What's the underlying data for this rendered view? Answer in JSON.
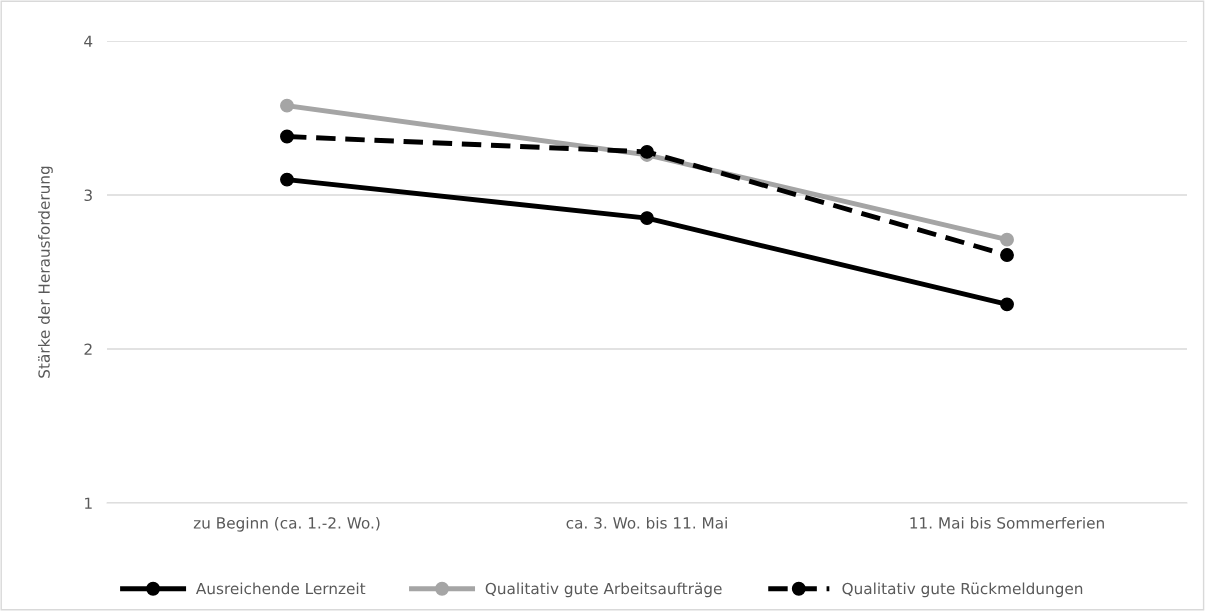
{
  "chart_data": {
    "type": "line",
    "ylabel": "Stärke der Herausforderung",
    "categories": [
      "zu Beginn (ca. 1.-2. Wo.)",
      "ca. 3. Wo. bis 11. Mai",
      "11. Mai bis Sommerferien"
    ],
    "series": [
      {
        "name": "Ausreichende Lernzeit",
        "color": "#000000",
        "values": [
          3.1,
          2.85,
          2.29
        ],
        "line_style": "solid"
      },
      {
        "name": "Qualitativ gute Arbeitsaufträge",
        "color": "#a5a5a5",
        "values": [
          3.58,
          3.26,
          2.71
        ],
        "line_style": "solid"
      },
      {
        "name": "Qualitativ gute Rückmeldungen",
        "color": "#000000",
        "values": [
          3.38,
          3.28,
          2.61
        ],
        "line_style": "dashed"
      }
    ],
    "ylim": [
      1,
      4
    ],
    "yticks": [
      1,
      2,
      3,
      4
    ],
    "grid": "y",
    "legend": "bottom",
    "marker": "circle"
  }
}
